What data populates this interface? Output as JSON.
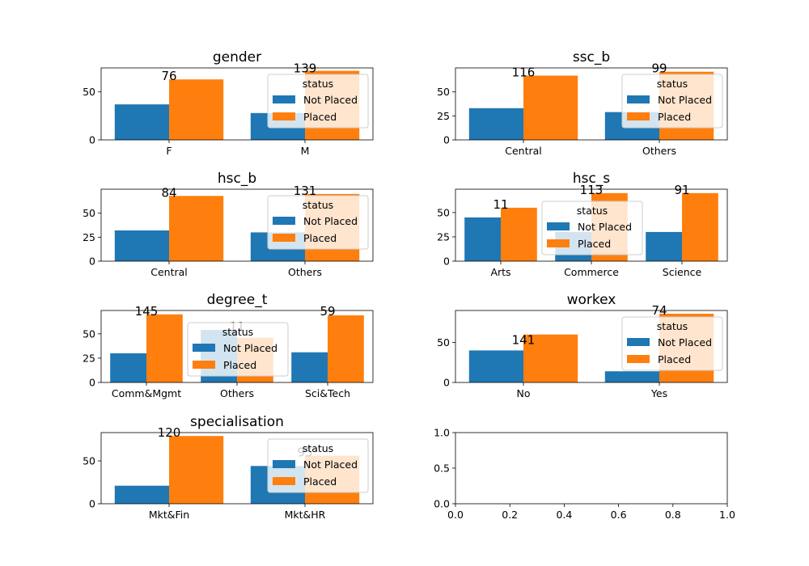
{
  "chart_data": [
    {
      "type": "bar",
      "title": "gender",
      "categories": [
        "F",
        "M"
      ],
      "series": [
        {
          "name": "Not Placed",
          "values": [
            37,
            28
          ]
        },
        {
          "name": "Placed",
          "values": [
            63,
            72
          ]
        }
      ],
      "annotations": [
        "76",
        "139"
      ],
      "ylim": [
        0,
        75
      ],
      "yticks": [
        "0",
        "50"
      ],
      "legend": {
        "title": "status",
        "placement": "upper right"
      },
      "grid": false
    },
    {
      "type": "bar",
      "title": "ssc_b",
      "categories": [
        "Central",
        "Others"
      ],
      "series": [
        {
          "name": "Not Placed",
          "values": [
            33,
            29
          ]
        },
        {
          "name": "Placed",
          "values": [
            67,
            71
          ]
        }
      ],
      "annotations": [
        "116",
        "99"
      ],
      "ylim": [
        0,
        75
      ],
      "yticks": [
        "0",
        "25",
        "50"
      ],
      "legend": {
        "title": "status",
        "placement": "upper right"
      },
      "grid": false
    },
    {
      "type": "bar",
      "title": "hsc_b",
      "categories": [
        "Central",
        "Others"
      ],
      "series": [
        {
          "name": "Not Placed",
          "values": [
            32,
            30
          ]
        },
        {
          "name": "Placed",
          "values": [
            68,
            70
          ]
        }
      ],
      "annotations": [
        "84",
        "131"
      ],
      "ylim": [
        0,
        75
      ],
      "yticks": [
        "0",
        "25",
        "50"
      ],
      "legend": {
        "title": "status",
        "placement": "upper right"
      },
      "grid": false
    },
    {
      "type": "bar",
      "title": "hsc_s",
      "categories": [
        "Arts",
        "Commerce",
        "Science"
      ],
      "series": [
        {
          "name": "Not Placed",
          "values": [
            45,
            30,
            30
          ]
        },
        {
          "name": "Placed",
          "values": [
            55,
            70,
            70
          ]
        }
      ],
      "annotations": [
        "11",
        "113",
        "91"
      ],
      "ylim": [
        0,
        74
      ],
      "yticks": [
        "0",
        "25",
        "50"
      ],
      "legend": {
        "title": "status",
        "placement": "upper center"
      },
      "grid": false
    },
    {
      "type": "bar",
      "title": "degree_t",
      "categories": [
        "Comm&Mgmt",
        "Others",
        "Sci&Tech"
      ],
      "series": [
        {
          "name": "Not Placed",
          "values": [
            30,
            54,
            31
          ]
        },
        {
          "name": "Placed",
          "values": [
            70,
            46,
            69
          ]
        }
      ],
      "annotations": [
        "145",
        "11",
        "59"
      ],
      "ylim": [
        0,
        74
      ],
      "yticks": [
        "0",
        "25",
        "50"
      ],
      "legend": {
        "title": "status",
        "placement": "upper center"
      },
      "grid": false
    },
    {
      "type": "bar",
      "title": "workex",
      "categories": [
        "No",
        "Yes"
      ],
      "series": [
        {
          "name": "Not Placed",
          "values": [
            40,
            14
          ]
        },
        {
          "name": "Placed",
          "values": [
            60,
            86
          ]
        }
      ],
      "annotations": [
        "141",
        "74"
      ],
      "ylim": [
        0,
        90
      ],
      "yticks": [
        "0",
        "50"
      ],
      "legend": {
        "title": "status",
        "placement": "upper right"
      },
      "grid": false
    },
    {
      "type": "bar",
      "title": "specialisation",
      "categories": [
        "Mkt&Fin",
        "Mkt&HR"
      ],
      "series": [
        {
          "name": "Not Placed",
          "values": [
            21,
            44
          ]
        },
        {
          "name": "Placed",
          "values": [
            79,
            56
          ]
        }
      ],
      "annotations": [
        "120",
        "95"
      ],
      "ylim": [
        0,
        83
      ],
      "yticks": [
        "0",
        "50"
      ],
      "legend": {
        "title": "status",
        "placement": "upper right"
      },
      "grid": false
    },
    {
      "type": "bar",
      "title": "",
      "categories": [],
      "series": [],
      "xlim": [
        0,
        1
      ],
      "ylim": [
        0,
        1
      ],
      "xticks": [
        "0.0",
        "0.2",
        "0.4",
        "0.6",
        "0.8",
        "1.0"
      ],
      "yticks": [
        "0.0",
        "0.5",
        "1.0"
      ],
      "grid": false
    }
  ],
  "colors": {
    "Not Placed": "#1f77b4",
    "Placed": "#ff7f0e",
    "axis": "#000000",
    "background": "#ffffff"
  }
}
